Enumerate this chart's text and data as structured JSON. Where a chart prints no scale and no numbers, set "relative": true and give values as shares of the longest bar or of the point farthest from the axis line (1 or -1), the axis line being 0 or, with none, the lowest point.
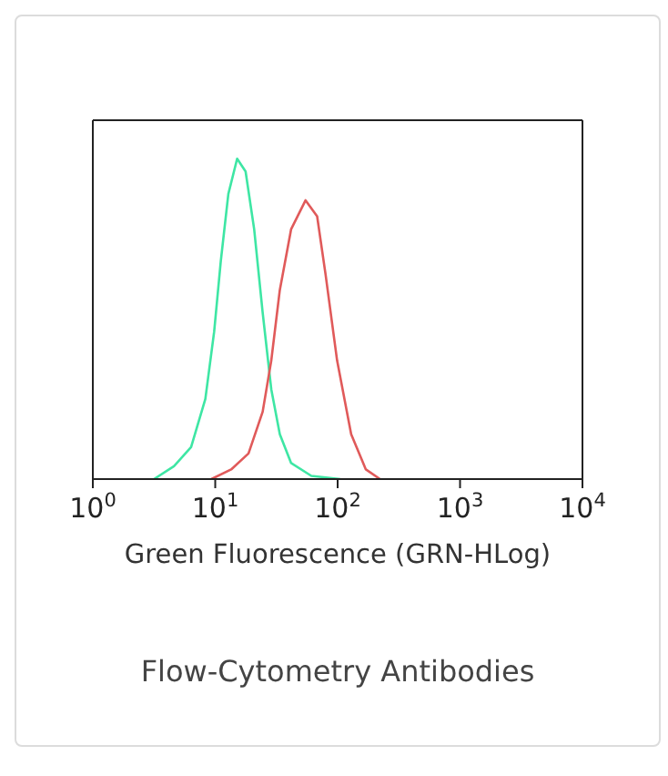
{
  "chart_data": {
    "type": "line",
    "xlabel": "Green Fluorescence (GRN-HLog)",
    "log": "x",
    "xlim": [
      1,
      10000
    ],
    "xticks": [
      {
        "value": 1,
        "label": "10$^{0}$"
      },
      {
        "value": 10,
        "label": "10$^{1}$"
      },
      {
        "value": 100,
        "label": "10$^{2}$"
      },
      {
        "value": 1000,
        "label": "10$^{3}$"
      },
      {
        "value": 10000,
        "label": "10$^{4}$"
      }
    ],
    "relative": true,
    "tick_labels": "x",
    "marker": "none",
    "annotations": [
      "Flow-Cytometry Antibodies"
    ],
    "series": [
      {
        "color": "#3ee6a4",
        "x": [
          3.16,
          4.6,
          6.35,
          8.3,
          9.8,
          11.1,
          12.8,
          15.1,
          17.7,
          20.8,
          24.4,
          28.7,
          33.7,
          41.7,
          61,
          105
        ],
        "values": [
          0,
          0.04,
          0.1,
          0.25,
          0.46,
          0.68,
          0.89,
          1,
          0.96,
          0.78,
          0.52,
          0.28,
          0.14,
          0.05,
          0.01,
          0
        ]
      },
      {
        "color": "#e05a5a",
        "x": [
          9.3,
          13.5,
          18.7,
          24.4,
          28.7,
          33.7,
          41.7,
          54.7,
          68,
          79.6,
          99,
          129,
          170,
          222
        ],
        "values": [
          0,
          0.03,
          0.08,
          0.21,
          0.37,
          0.59,
          0.78,
          0.87,
          0.82,
          0.64,
          0.37,
          0.14,
          0.03,
          0
        ]
      }
    ]
  }
}
